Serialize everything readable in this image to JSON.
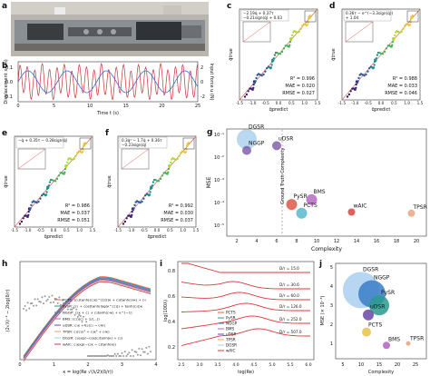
{
  "panels": {
    "a": {
      "label": "a"
    },
    "b": {
      "label": "b",
      "ylabel_left": "Displacement x (m)",
      "ylabel_right": "Input force u (N)",
      "xlabel": "Time t (s)",
      "x_ticks": [
        "0",
        "5",
        "10",
        "15",
        "20",
        "25"
      ],
      "y_ticks_left": [
        "0.1",
        "0.0",
        "-0.1"
      ],
      "y_ticks_right": [
        "2",
        "0",
        "-2"
      ]
    },
    "c": {
      "label": "c",
      "eq1": "−2.19q̇ + 0.37τ",
      "eq2": "−0.21sign(q̇) + 0.03",
      "r2": "R² = 0.996",
      "mae": "MAE = 0.020",
      "rmse": "RMSE = 0.027"
    },
    "d": {
      "label": "d",
      "eq1": "0.36τ − e^(−3.3sign(q̇))",
      "eq2": "+ 1.04",
      "r2": "R² = 0.988",
      "mae": "MAE = 0.033",
      "rmse": "RMSE = 0.046"
    },
    "e": {
      "label": "e",
      "eq1": "−q̇ + 0.35τ − 0.28sign(q̇)",
      "r2": "R² = 0.986",
      "mae": "MAE = 0.037",
      "rmse": "RMSE = 0.051"
    },
    "f": {
      "label": "f",
      "eq1": "0.3q̇² − 1.7q̇ + 0.36τ",
      "eq2": "−0.23sign(q̇)",
      "r2": "R² = 0.992",
      "mae": "MAE = 0.030",
      "rmse": "RMSE = 0.037"
    },
    "g": {
      "label": "g",
      "xlabel": "Complexity",
      "ylabel": "MSE",
      "annotation": "Ground Truth Complexity",
      "x_ticks": [
        "2",
        "4",
        "6",
        "8",
        "10",
        "12",
        "14",
        "16",
        "18",
        "20"
      ],
      "y_ticks": [
        "10⁻¹",
        "10⁻²",
        "10⁻³",
        "10⁻⁴",
        "10⁻⁵"
      ]
    },
    "h": {
      "label": "h",
      "xlabel": "κ = log(Re √(λ/2)(δ/r))",
      "ylabel": "(2√λ)⁻¹ − 2log(δ/r)",
      "x_ticks": [
        "0",
        "1",
        "2",
        "3",
        "4"
      ]
    },
    "i": {
      "label": "i",
      "xlabel": "log(Re)",
      "ylabel": "log(100λ)",
      "x_ticks": [
        "2.5",
        "3.0",
        "3.5",
        "4.0",
        "4.5",
        "5.0",
        "5.5",
        "6.0"
      ],
      "y_ticks": [
        "0.8",
        "0.6",
        "0.4",
        "0.2"
      ]
    },
    "j": {
      "label": "j",
      "xlabel": "Complexity",
      "ylabel": "MSE (× 10⁻³)",
      "x_ticks": [
        "5",
        "10",
        "15",
        "20",
        "25"
      ],
      "y_ticks": [
        "5",
        "4",
        "3",
        "2",
        "1"
      ]
    }
  },
  "labels": {
    "pred": "q̈predict",
    "true": "q̈true",
    "h_legend": [
      "PCTS: (c₁)tanh((c₂κ)^(1/2)κ + c₃)tanh(c₄κ) + c₄",
      "PySR: (c₁ + cos(tanh(log(κ^c₂))) + tanh(c₃))κ",
      "NGGP: c₁κ + c₂ + c₃tanh(c₄κ) + κ^(−1)",
      "BMS: (c₁)(c₂ + 1/(...)) ",
      "uDSR: c₁κ + c₂(c₃ − c₄κ)",
      "TPSR: c₁(c₂κ³ + c₃κ² + c₄κ)",
      "DGSR: c₁exp(−cos(c₂tanh(κ) + c₃)",
      "wAIC: c₁exp(−c₂κ − c₃tanh(κ))"
    ],
    "i_legend": [
      "PCTS",
      "PySR",
      "NGGP",
      "BMS",
      "uDSR",
      "TPSR",
      "DGSR",
      "wAIC"
    ],
    "i_curves": [
      "D/r = 15.0",
      "D/r = 30.6",
      "D/r = 60.0",
      "D/r = 126.0",
      "D/r = 252.0",
      "D/r = 507.0"
    ]
  },
  "chart_data": [
    {
      "type": "scatter",
      "panel": "g",
      "xlabel": "Complexity",
      "ylabel": "MSE",
      "ylog": true,
      "points": [
        {
          "name": "DGSR",
          "x": 3,
          "y": 0.1,
          "color": "#a9cfee"
        },
        {
          "name": "uDSR",
          "x": 6,
          "y": 0.05,
          "color": "#7b56a8"
        },
        {
          "name": "NGGP",
          "x": 3,
          "y": 0.03,
          "color": "#7b56a8"
        },
        {
          "name": "PySR",
          "x": 7.5,
          "y": 9e-05,
          "color": "#d94f3a"
        },
        {
          "name": "BMS",
          "x": 9.5,
          "y": 0.00015,
          "color": "#b060c0"
        },
        {
          "name": "PCTS",
          "x": 8.5,
          "y": 3.5e-05,
          "color": "#4fb3c8"
        },
        {
          "name": "wAIC",
          "x": 13.5,
          "y": 4e-05,
          "color": "#d73838"
        },
        {
          "name": "TPSR",
          "x": 19.5,
          "y": 3.5e-05,
          "color": "#e6a27a"
        }
      ]
    },
    {
      "type": "scatter",
      "panel": "j",
      "xlabel": "Complexity",
      "ylabel": "MSE (× 10⁻³)",
      "points": [
        {
          "name": "DGSR",
          "x": 10,
          "y": 3.8,
          "color": "#a9cfee"
        },
        {
          "name": "NGGP",
          "x": 13,
          "y": 3.6,
          "color": "#3a7ec7"
        },
        {
          "name": "PySR",
          "x": 15,
          "y": 3.0,
          "color": "#2a9a8e"
        },
        {
          "name": "uDSR",
          "x": 12,
          "y": 2.5,
          "color": "#6a46a8"
        },
        {
          "name": "PCTS",
          "x": 11.5,
          "y": 1.6,
          "color": "#e8c24a"
        },
        {
          "name": "BMS",
          "x": 17,
          "y": 0.9,
          "color": "#b060c0"
        },
        {
          "name": "TPSR",
          "x": 23,
          "y": 1.0,
          "color": "#e6a27a"
        }
      ]
    }
  ]
}
